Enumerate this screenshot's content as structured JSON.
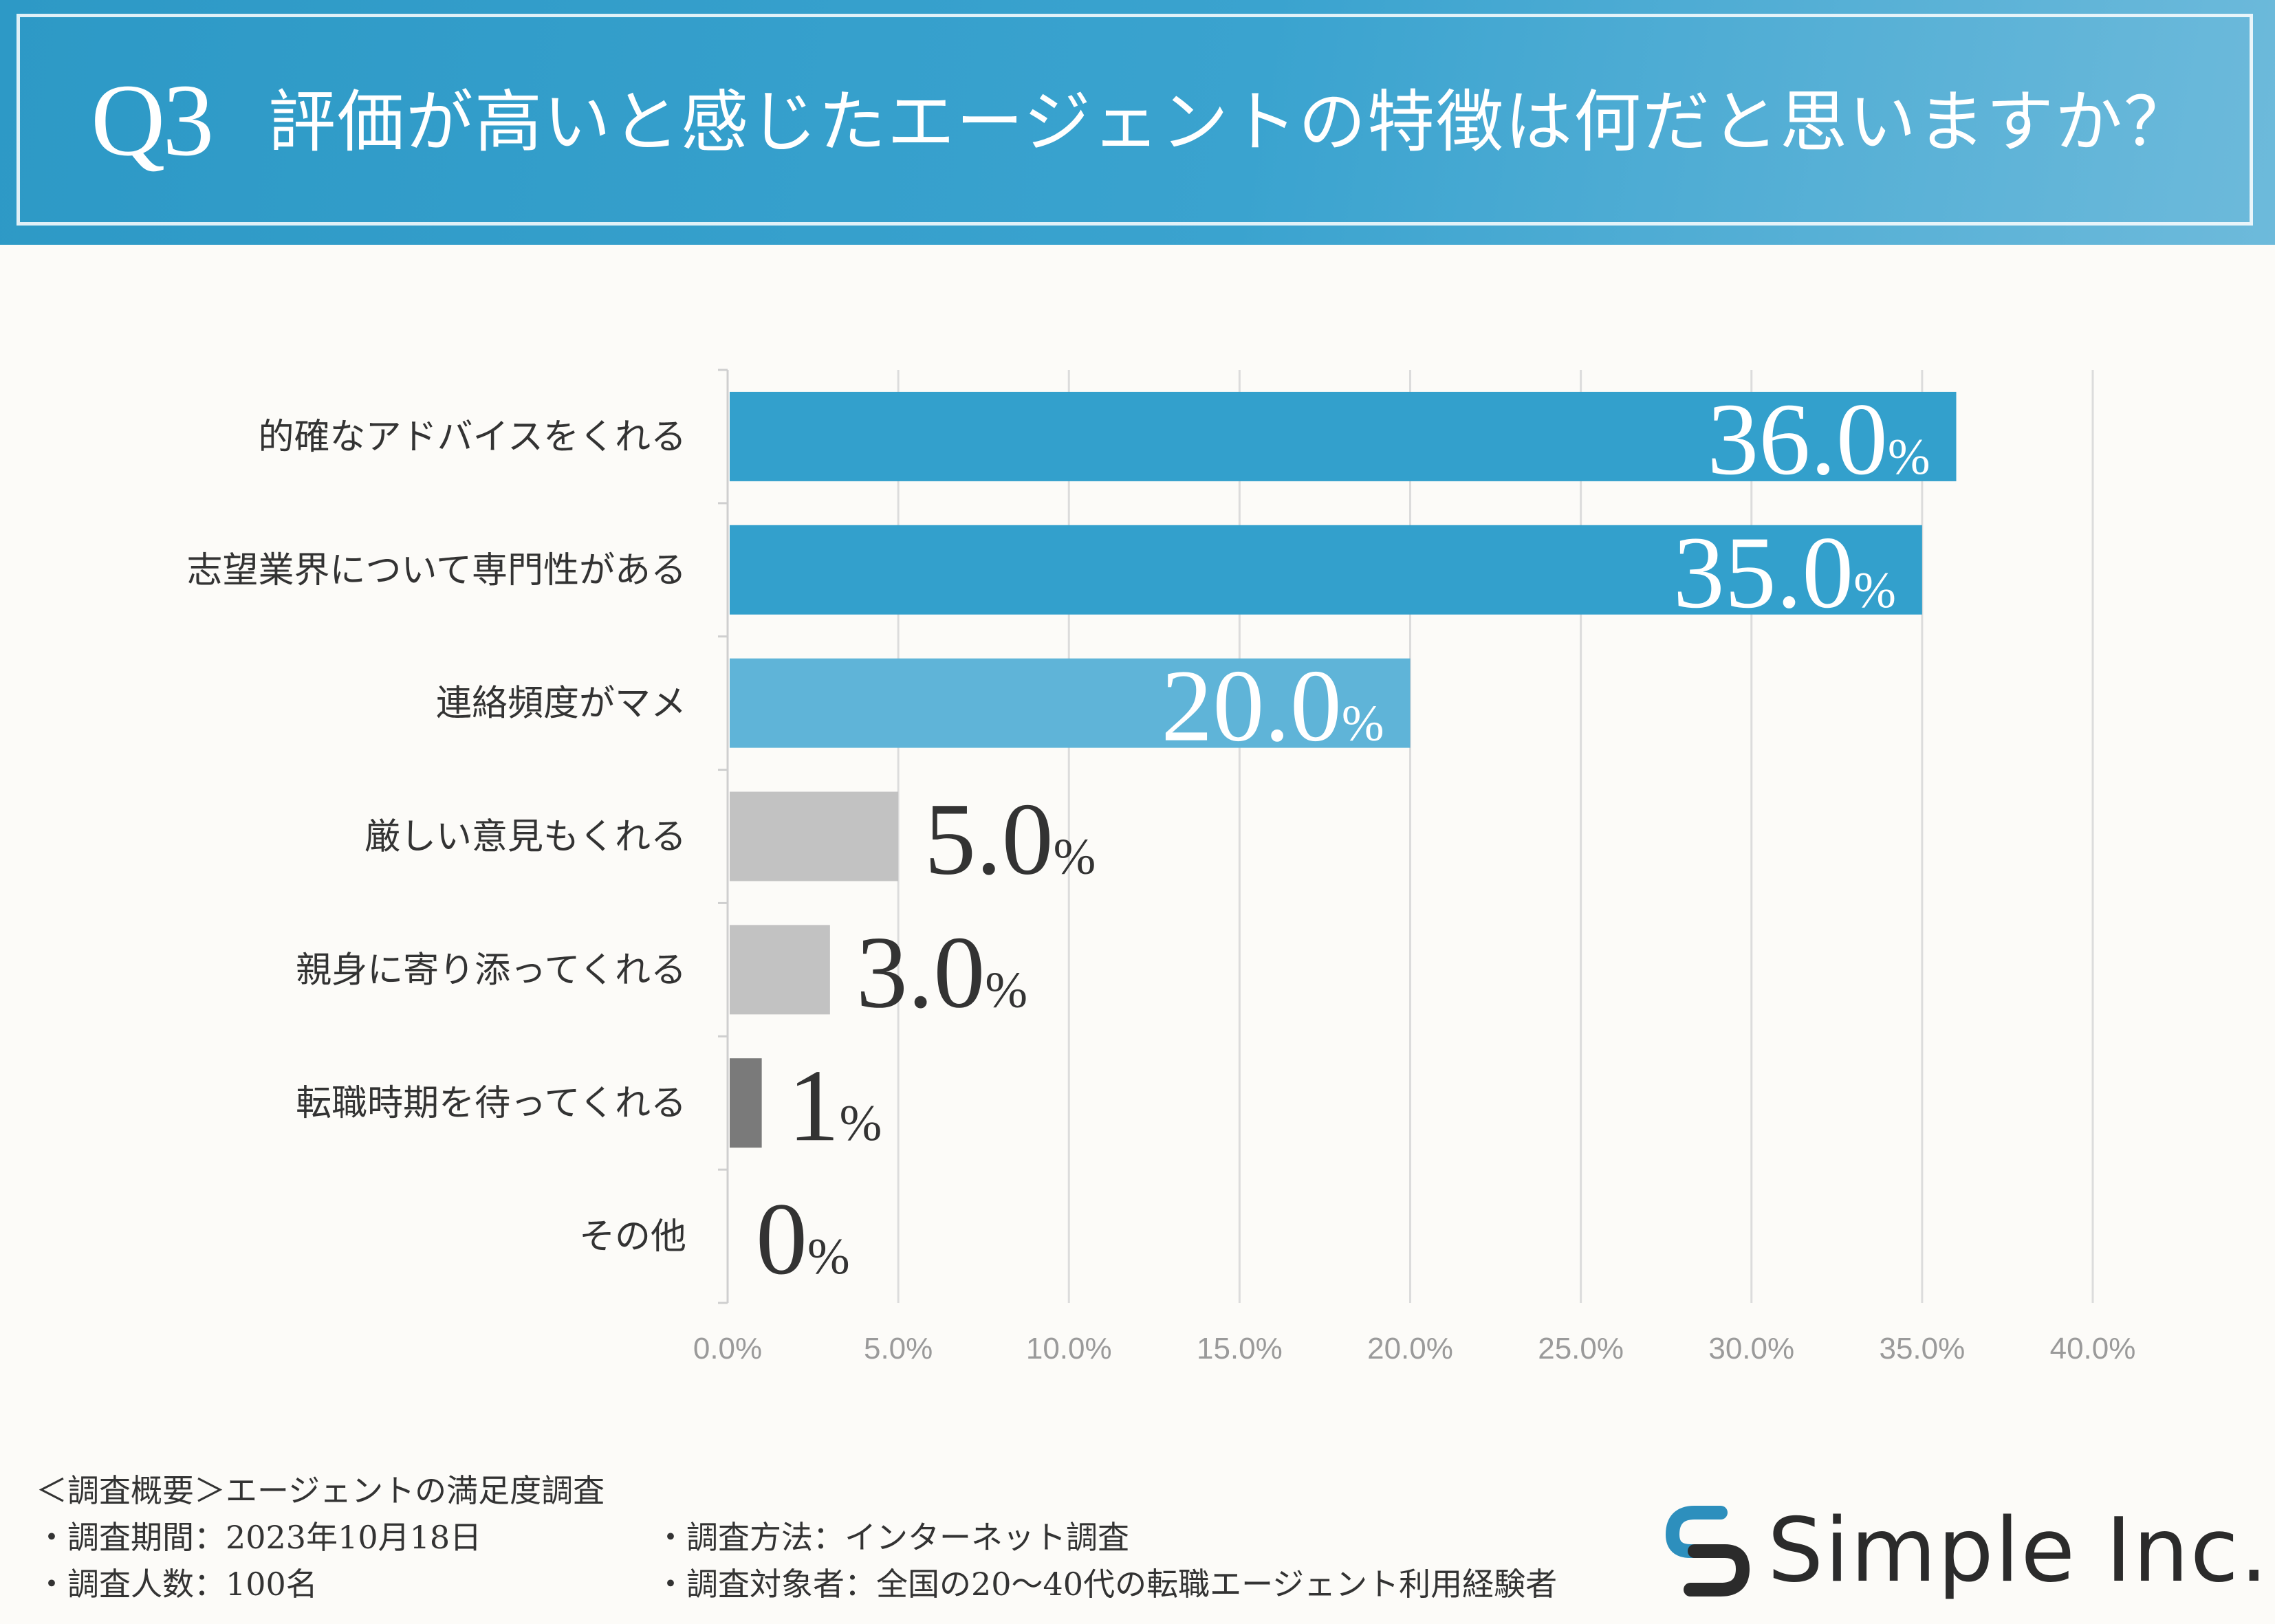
{
  "header": {
    "q_label": "Q3",
    "question": "評価が高いと感じたエージェントの特徴は何だと思いますか？"
  },
  "chart_data": {
    "type": "bar",
    "orientation": "horizontal",
    "categories": [
      "的確なアドバイスをくれる",
      "志望業界について専門性がある",
      "連絡頻度がマメ",
      "厳しい意見もくれる",
      "親身に寄り添ってくれる",
      "転職時期を待ってくれる",
      "その他"
    ],
    "values": [
      36.0,
      35.0,
      20.0,
      5.0,
      3.0,
      1,
      0
    ],
    "value_labels": [
      "36.0",
      "35.0",
      "20.0",
      "5.0",
      "3.0",
      "1",
      "0"
    ],
    "value_unit": "%",
    "xlim": [
      0,
      40
    ],
    "ticks": [
      "0.0%",
      "5.0%",
      "10.0%",
      "15.0%",
      "20.0%",
      "25.0%",
      "30.0%",
      "35.0%",
      "40.0%"
    ],
    "grid": true,
    "bar_colors": [
      "#33a0cc",
      "#33a0cc",
      "#5fb4d8",
      "#c2c2c2",
      "#c2c2c2",
      "#7a7a7a",
      "#7a7a7a"
    ],
    "label_colors": [
      "#ffffff",
      "#ffffff",
      "#ffffff",
      "#333333",
      "#333333",
      "#333333",
      "#333333"
    ]
  },
  "footer": {
    "overview": "＜調査概要＞エージェントの満足度調査",
    "period": "・調査期間：2023年10月18日",
    "count": "・調査人数：100名",
    "method": "・調査方法：インターネット調査",
    "target": "・調査対象者：全国の20～40代の転職エージェント利用経験者"
  },
  "logo": {
    "text": "Simple Inc."
  }
}
